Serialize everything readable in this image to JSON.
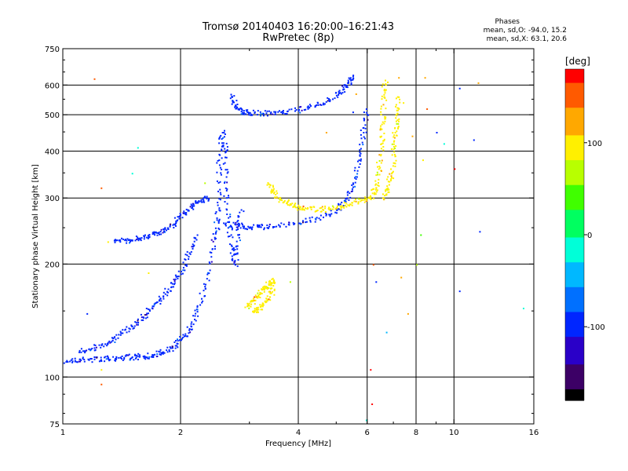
{
  "chart_data": {
    "type": "scatter",
    "title": "Tromsø 20140403 16:20:00–16:21:43",
    "subtitle": "RwPretec (8p)",
    "xlabel": "Frequency [MHz]",
    "ylabel": "Stationary phase Virtual Height [km]",
    "x_scale": "log",
    "y_scale": "log",
    "xlim": [
      1,
      16
    ],
    "ylim": [
      75,
      750
    ],
    "x_ticks": [
      1,
      2,
      4,
      6,
      8,
      10,
      16
    ],
    "x_tick_labels": [
      "1",
      "2",
      "4",
      "6",
      "8",
      "10",
      "16"
    ],
    "y_ticks": [
      75,
      100,
      200,
      300,
      400,
      500,
      600,
      750
    ],
    "y_tick_labels": [
      "75",
      "100",
      "200",
      "300",
      "400",
      "500",
      "600",
      "750"
    ],
    "x_minor_ticks": [
      3,
      5,
      7,
      9
    ],
    "y_minor_ticks": [
      80,
      90,
      150,
      250,
      350,
      450,
      550,
      650,
      700
    ],
    "grid": true,
    "stats": {
      "heading": "Phases",
      "line_o": "mean, sd,O:  -94.0, 15.2",
      "line_x": "mean, sd,X:  63.1, 20.6"
    },
    "colorbar": {
      "label": "[deg]",
      "min": -180,
      "max": 180,
      "ticks": [
        100,
        0,
        -100
      ],
      "tick_labels": [
        "100",
        "0",
        "-100"
      ],
      "palette": [
        "#000000",
        "#3c0066",
        "#2a00c8",
        "#0026ff",
        "#0070ff",
        "#00b8ff",
        "#00ffd8",
        "#00ff60",
        "#40ff00",
        "#b8ff00",
        "#fff000",
        "#ffa800",
        "#ff5a00",
        "#ff0000"
      ]
    },
    "traces": [
      {
        "name": "",
        "phase": -100,
        "points": [
          [
            1.02,
            111
          ],
          [
            1.1,
            112
          ],
          [
            1.2,
            112
          ],
          [
            1.3,
            112.5
          ],
          [
            1.4,
            113
          ],
          [
            1.5,
            113.5
          ],
          [
            1.6,
            114
          ],
          [
            1.7,
            115
          ],
          [
            1.8,
            117
          ],
          [
            1.9,
            120
          ],
          [
            2.0,
            126
          ],
          [
            2.1,
            135
          ],
          [
            2.2,
            150
          ],
          [
            2.3,
            175
          ],
          [
            2.4,
            220
          ],
          [
            2.5,
            280
          ]
        ]
      },
      {
        "name": "",
        "phase": -100,
        "points": [
          [
            1.1,
            118
          ],
          [
            1.2,
            120
          ],
          [
            1.3,
            124
          ],
          [
            1.4,
            130
          ],
          [
            1.5,
            137
          ],
          [
            1.6,
            145
          ],
          [
            1.7,
            155
          ],
          [
            1.8,
            165
          ],
          [
            1.9,
            178
          ],
          [
            2.0,
            192
          ],
          [
            2.1,
            215
          ],
          [
            2.2,
            240
          ]
        ]
      },
      {
        "name": "",
        "phase": -100,
        "points": [
          [
            1.35,
            232
          ],
          [
            1.45,
            232
          ],
          [
            1.55,
            235
          ],
          [
            1.65,
            238
          ],
          [
            1.75,
            243
          ],
          [
            1.85,
            250
          ],
          [
            1.95,
            262
          ],
          [
            2.05,
            275
          ],
          [
            2.15,
            290
          ],
          [
            2.25,
            298
          ],
          [
            2.35,
            300
          ]
        ]
      },
      {
        "name": "",
        "phase": -100,
        "points": [
          [
            2.45,
            235
          ],
          [
            2.5,
            300
          ],
          [
            2.5,
            380
          ],
          [
            2.55,
            450
          ],
          [
            2.6,
            400
          ],
          [
            2.6,
            320
          ],
          [
            2.65,
            260
          ],
          [
            2.7,
            220
          ],
          [
            2.75,
            200
          ],
          [
            2.8,
            240
          ],
          [
            2.85,
            280
          ]
        ]
      },
      {
        "name": "",
        "phase": -100,
        "points": [
          [
            2.6,
            258
          ],
          [
            2.8,
            254
          ],
          [
            3.0,
            252
          ],
          [
            3.2,
            252
          ],
          [
            3.5,
            253
          ],
          [
            4.0,
            258
          ],
          [
            4.5,
            266
          ],
          [
            5.0,
            280
          ],
          [
            5.3,
            300
          ],
          [
            5.5,
            330
          ],
          [
            5.7,
            380
          ],
          [
            5.85,
            450
          ],
          [
            5.95,
            520
          ]
        ]
      },
      {
        "name": "",
        "phase": -100,
        "points": [
          [
            2.7,
            560
          ],
          [
            2.75,
            530
          ],
          [
            2.85,
            512
          ],
          [
            3.0,
            508
          ],
          [
            3.3,
            507
          ],
          [
            3.6,
            510
          ],
          [
            4.0,
            518
          ],
          [
            4.4,
            530
          ],
          [
            4.8,
            550
          ],
          [
            5.1,
            575
          ],
          [
            5.35,
            610
          ],
          [
            5.5,
            635
          ]
        ]
      },
      {
        "name": "",
        "phase": 100,
        "points": [
          [
            3.35,
            328
          ],
          [
            3.45,
            310
          ],
          [
            3.6,
            298
          ],
          [
            3.8,
            290
          ],
          [
            4.0,
            285
          ],
          [
            4.3,
            281
          ],
          [
            4.6,
            281
          ],
          [
            5.0,
            284
          ],
          [
            5.4,
            290
          ],
          [
            5.8,
            298
          ],
          [
            6.1,
            303
          ],
          [
            6.3,
            320
          ],
          [
            6.4,
            360
          ],
          [
            6.5,
            420
          ],
          [
            6.55,
            480
          ],
          [
            6.6,
            560
          ],
          [
            6.65,
            620
          ]
        ]
      },
      {
        "name": "",
        "phase": 100,
        "points": [
          [
            6.6,
            300
          ],
          [
            6.75,
            320
          ],
          [
            6.9,
            350
          ],
          [
            7.0,
            400
          ],
          [
            7.05,
            450
          ],
          [
            7.1,
            500
          ],
          [
            7.15,
            560
          ]
        ]
      },
      {
        "name": "",
        "phase": 100,
        "points": [
          [
            2.95,
            155
          ],
          [
            3.05,
            160
          ],
          [
            3.15,
            165
          ],
          [
            3.25,
            172
          ],
          [
            3.35,
            178
          ],
          [
            3.45,
            182
          ],
          [
            3.4,
            168
          ],
          [
            3.3,
            160
          ],
          [
            3.15,
            152
          ],
          [
            3.05,
            150
          ]
        ]
      }
    ],
    "scattered_points": [
      {
        "x": 1.2,
        "y": 625,
        "phase": 160
      },
      {
        "x": 1.55,
        "y": 410,
        "phase": -20
      },
      {
        "x": 1.5,
        "y": 350,
        "phase": -20
      },
      {
        "x": 1.25,
        "y": 320,
        "phase": 150
      },
      {
        "x": 1.65,
        "y": 190,
        "phase": 110
      },
      {
        "x": 1.25,
        "y": 105,
        "phase": 110
      },
      {
        "x": 1.25,
        "y": 96,
        "phase": 140
      },
      {
        "x": 1.15,
        "y": 148,
        "phase": -100
      },
      {
        "x": 4.7,
        "y": 450,
        "phase": 130
      },
      {
        "x": 5.6,
        "y": 570,
        "phase": 120
      },
      {
        "x": 5.5,
        "y": 510,
        "phase": -100
      },
      {
        "x": 6.2,
        "y": 200,
        "phase": 160
      },
      {
        "x": 6.3,
        "y": 180,
        "phase": -100
      },
      {
        "x": 6.1,
        "y": 105,
        "phase": 180
      },
      {
        "x": 6.15,
        "y": 85,
        "phase": 180
      },
      {
        "x": 5.95,
        "y": 77,
        "phase": -20
      },
      {
        "x": 6.7,
        "y": 132,
        "phase": -50
      },
      {
        "x": 7.3,
        "y": 185,
        "phase": 120
      },
      {
        "x": 7.6,
        "y": 148,
        "phase": 120
      },
      {
        "x": 8.0,
        "y": 200,
        "phase": 60
      },
      {
        "x": 8.2,
        "y": 240,
        "phase": 40
      },
      {
        "x": 8.4,
        "y": 630,
        "phase": 120
      },
      {
        "x": 8.5,
        "y": 520,
        "phase": 160
      },
      {
        "x": 9.0,
        "y": 450,
        "phase": -100
      },
      {
        "x": 9.4,
        "y": 420,
        "phase": -20
      },
      {
        "x": 10.0,
        "y": 360,
        "phase": 170
      },
      {
        "x": 10.3,
        "y": 590,
        "phase": -100
      },
      {
        "x": 11.2,
        "y": 430,
        "phase": -100
      },
      {
        "x": 11.5,
        "y": 610,
        "phase": 120
      },
      {
        "x": 11.6,
        "y": 245,
        "phase": -100
      },
      {
        "x": 10.3,
        "y": 170,
        "phase": -100
      },
      {
        "x": 15.0,
        "y": 153,
        "phase": -20
      },
      {
        "x": 7.2,
        "y": 630,
        "phase": 130
      },
      {
        "x": 7.4,
        "y": 540,
        "phase": 100
      },
      {
        "x": 7.8,
        "y": 440,
        "phase": 120
      },
      {
        "x": 8.3,
        "y": 380,
        "phase": 100
      },
      {
        "x": 3.8,
        "y": 180,
        "phase": 80
      },
      {
        "x": 1.3,
        "y": 230,
        "phase": 100
      },
      {
        "x": 2.3,
        "y": 330,
        "phase": 80
      }
    ]
  }
}
